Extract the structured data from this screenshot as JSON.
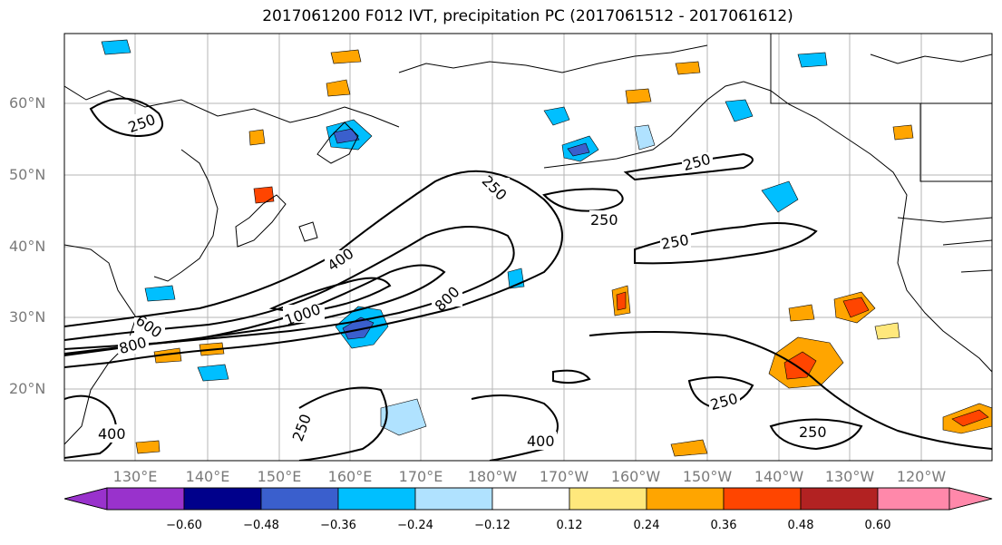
{
  "title": "2017061200 F012 IVT, precipitation PC (2017061512 - 2017061612)",
  "lat_labels": [
    "60°N",
    "50°N",
    "40°N",
    "30°N",
    "20°N"
  ],
  "lon_labels": [
    "130°E",
    "140°E",
    "150°E",
    "160°E",
    "170°E",
    "180°W",
    "170°W",
    "160°W",
    "150°W",
    "140°W",
    "130°W",
    "120°W"
  ],
  "contour_labels": [
    "250",
    "250",
    "250",
    "250",
    "250",
    "250",
    "250",
    "250",
    "400",
    "400",
    "400",
    "600",
    "800",
    "800",
    "1000"
  ],
  "colorbar": {
    "ticks": [
      "−0.60",
      "−0.48",
      "−0.36",
      "−0.24",
      "−0.12",
      "0.12",
      "0.24",
      "0.36",
      "0.48",
      "0.60"
    ],
    "colors": [
      "#9932cc",
      "#00008b",
      "#3a5fcd",
      "#00bfff",
      "#b0e2ff",
      "#ffffff",
      "#ffe87c",
      "#ffa500",
      "#ff4500",
      "#b22222",
      "#ff88aa"
    ]
  }
}
